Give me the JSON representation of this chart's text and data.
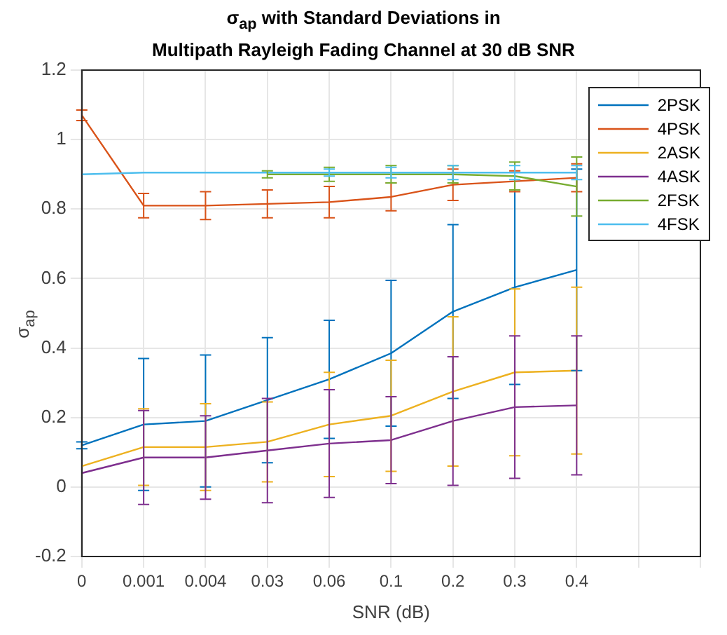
{
  "chart_data": {
    "type": "line",
    "title": "σ$_{ap}$ with Standard Deviations in\nMultipath Rayleigh Fading Channel at 30 dB SNR",
    "xlabel": "SNR (dB)",
    "ylabel": "σ$_{ap}$",
    "categories": [
      "0",
      "0.001",
      "0.004",
      "0.03",
      "0.06",
      "0.1",
      "0.2",
      "0.3",
      "0.4",
      null,
      null
    ],
    "ylim": [
      -0.2,
      1.2
    ],
    "yticks": [
      -0.2,
      0,
      0.2,
      0.4,
      0.6,
      0.8,
      1,
      1.2
    ],
    "grid": true,
    "legend": "top right",
    "line_style": "solid",
    "series": [
      {
        "name": "2PSK",
        "color": "#0072bd",
        "values": [
          0.12,
          0.18,
          0.19,
          0.25,
          0.31,
          0.385,
          0.505,
          0.575,
          0.625,
          null,
          null
        ],
        "errors": [
          0.01,
          0.19,
          0.19,
          0.18,
          0.17,
          0.21,
          0.25,
          0.28,
          0.29,
          null,
          null
        ]
      },
      {
        "name": "4PSK",
        "color": "#d95319",
        "values": [
          1.07,
          0.81,
          0.81,
          0.815,
          0.82,
          0.835,
          0.87,
          0.88,
          0.89,
          null,
          null
        ],
        "errors": [
          0.015,
          0.035,
          0.04,
          0.04,
          0.045,
          0.04,
          0.045,
          0.03,
          0.04,
          null,
          null
        ]
      },
      {
        "name": "2ASK",
        "color": "#edb120",
        "values": [
          0.06,
          0.115,
          0.115,
          0.13,
          0.18,
          0.205,
          0.275,
          0.33,
          0.335,
          null,
          null
        ],
        "errors": [
          null,
          0.11,
          0.125,
          0.115,
          0.15,
          0.16,
          0.215,
          0.24,
          0.24,
          null,
          null
        ]
      },
      {
        "name": "4ASK",
        "color": "#7e2f8e",
        "values": [
          0.04,
          0.085,
          0.085,
          0.105,
          0.125,
          0.135,
          0.19,
          0.23,
          0.235,
          null,
          null
        ],
        "errors": [
          null,
          0.135,
          0.12,
          0.15,
          0.155,
          0.125,
          0.185,
          0.205,
          0.2,
          null,
          null
        ]
      },
      {
        "name": "2FSK",
        "color": "#77ac30",
        "values": [
          null,
          null,
          null,
          0.9,
          0.9,
          0.9,
          0.9,
          0.895,
          0.865,
          null,
          null
        ],
        "errors": [
          null,
          null,
          null,
          0.01,
          0.02,
          0.025,
          0.025,
          0.04,
          0.085,
          null,
          null
        ]
      },
      {
        "name": "4FSK",
        "color": "#4dbeee",
        "values": [
          0.9,
          0.905,
          0.905,
          0.905,
          0.905,
          0.905,
          0.905,
          0.905,
          0.905,
          null,
          null
        ],
        "errors": [
          null,
          null,
          null,
          null,
          0.01,
          0.015,
          0.02,
          0.02,
          0.02,
          null,
          null
        ]
      }
    ]
  }
}
